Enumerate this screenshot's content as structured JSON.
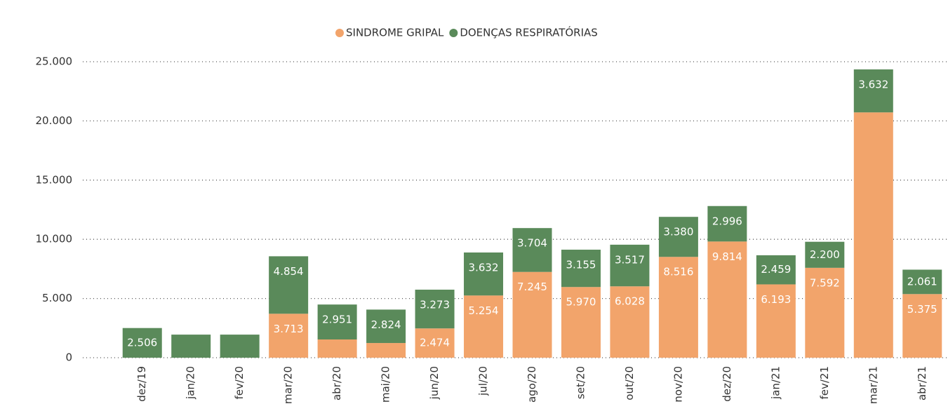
{
  "chart_data": {
    "type": "stacked-bar",
    "categories": [
      "dez/19",
      "jan/20",
      "fev/20",
      "mar/20",
      "abr/20",
      "mai/20",
      "jun/20",
      "jul/20",
      "ago/20",
      "set/20",
      "out/20",
      "nov/20",
      "dez/20",
      "jan/21",
      "fev/21",
      "mar/21",
      "abr/21"
    ],
    "series": [
      {
        "name": "SINDROME GRIPAL",
        "color": "#f2a46b",
        "values": [
          null,
          null,
          null,
          3713,
          1540,
          1240,
          2474,
          5254,
          7245,
          5970,
          6028,
          8516,
          9814,
          6193,
          7592,
          20720,
          5375
        ],
        "value_labels": [
          null,
          null,
          null,
          "3.713",
          null,
          null,
          "2.474",
          "5.254",
          "7.245",
          "5.970",
          "6.028",
          "8.516",
          "9.814",
          "6.193",
          "7.592",
          null,
          "5.375"
        ]
      },
      {
        "name": "DOENÇAS RESPIRATÓRIAS",
        "color": "#5a8a5a",
        "values": [
          2506,
          1950,
          1950,
          4854,
          2951,
          2824,
          3273,
          3632,
          3704,
          3155,
          3517,
          3380,
          2996,
          2459,
          2200,
          3632,
          2061
        ],
        "value_labels": [
          "2.506",
          null,
          null,
          "4.854",
          "2.951",
          "2.824",
          "3.273",
          "3.632",
          "3.704",
          "3.155",
          "3.517",
          "3.380",
          "2.996",
          "2.459",
          "2.200",
          "3.632",
          "2.061"
        ]
      }
    ],
    "ylim": [
      0,
      25000
    ],
    "yticks": [
      0,
      {
        "value": 5000,
        "label": "5.000"
      },
      {
        "value": 10000,
        "label": "10.000"
      },
      {
        "value": 15000,
        "label": "15.000"
      },
      {
        "value": 20000,
        "label": "20.000"
      },
      {
        "value": 25000,
        "label": "25.000"
      }
    ],
    "grid": true,
    "legend": "top"
  }
}
